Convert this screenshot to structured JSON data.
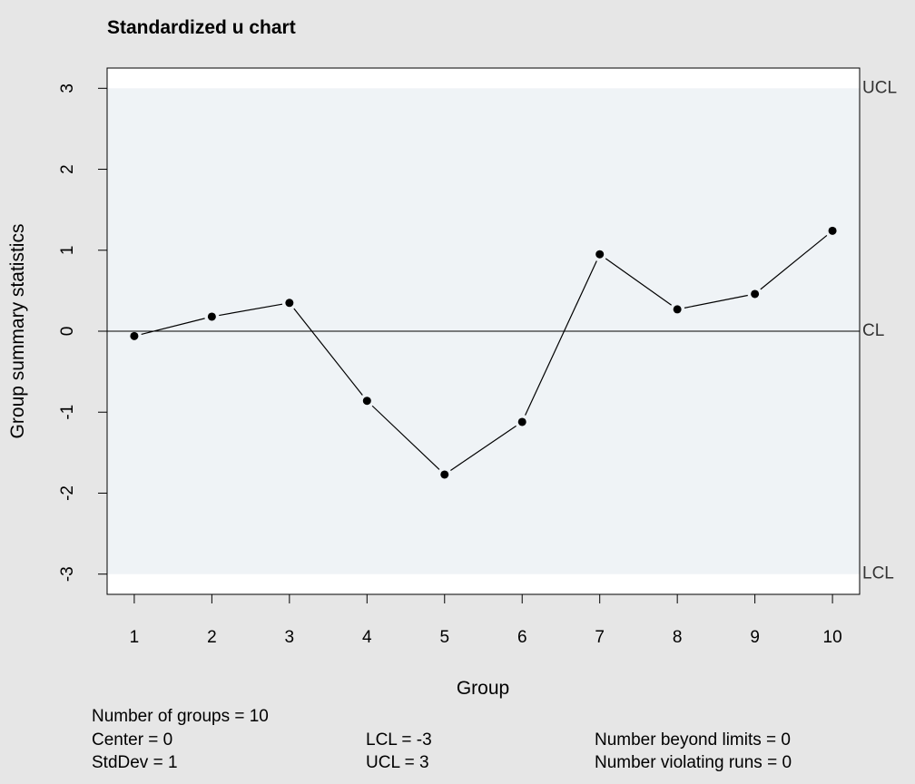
{
  "chart_data": {
    "type": "line",
    "title": "Standardized u chart",
    "xlabel": "Group",
    "ylabel": "Group summary statistics",
    "x": [
      1,
      2,
      3,
      4,
      5,
      6,
      7,
      8,
      9,
      10
    ],
    "values": [
      -0.06,
      0.18,
      0.35,
      -0.86,
      -1.77,
      -1.12,
      0.95,
      0.27,
      0.46,
      1.24
    ],
    "xlim": [
      0.65,
      10.35
    ],
    "ylim": [
      -3.25,
      3.25
    ],
    "yticks": [
      -3,
      -2,
      -1,
      0,
      1,
      2,
      3
    ],
    "ytick_labels": [
      "-3",
      "-2",
      "-1",
      "0",
      "1",
      "2",
      "3"
    ],
    "xticks": [
      1,
      2,
      3,
      4,
      5,
      6,
      7,
      8,
      9,
      10
    ],
    "xtick_labels": [
      "1",
      "2",
      "3",
      "4",
      "5",
      "6",
      "7",
      "8",
      "9",
      "10"
    ],
    "center_line": {
      "value": 0,
      "label": "CL"
    },
    "ucl": {
      "value": 3,
      "label": "UCL"
    },
    "lcl": {
      "value": -3,
      "label": "LCL"
    },
    "grid": false,
    "colors": {
      "background": "#e6e6e6",
      "plot_region": "#ffffff",
      "control_band": "#eff3f6",
      "line": "#000000",
      "limit_label": "#333333"
    }
  },
  "stats": {
    "groups": "Number of groups = 10",
    "center": "Center = 0",
    "stddev": "StdDev = 1",
    "lcl": "LCL = -3",
    "ucl": "UCL = 3",
    "beyond": "Number beyond limits = 0",
    "violating": "Number violating runs = 0"
  }
}
